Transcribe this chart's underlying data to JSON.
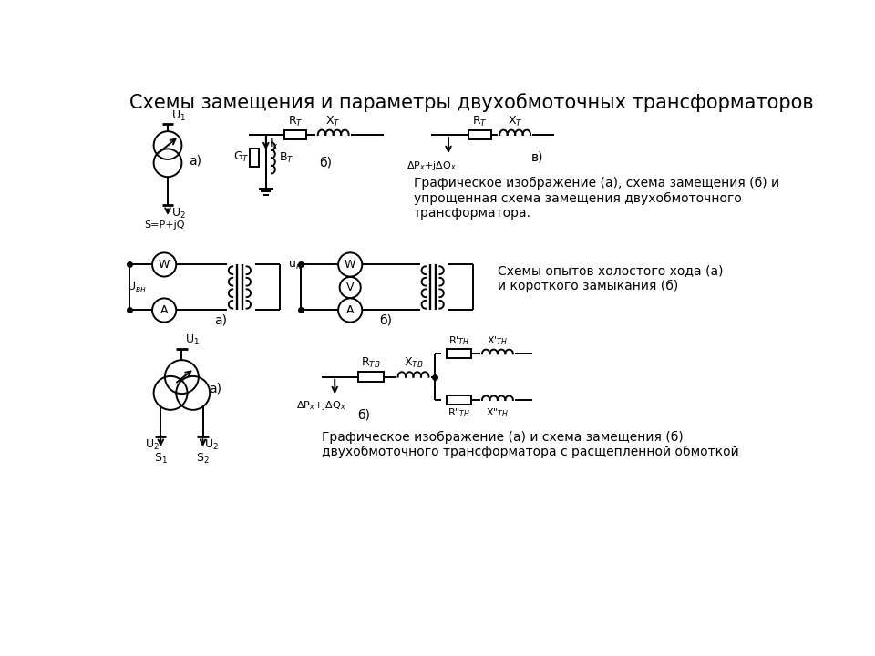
{
  "title": "Схемы замещения и параметры двухобмоточных трансформаторов",
  "title_fontsize": 15,
  "background_color": "#ffffff",
  "text_color": "#000000",
  "section1_text": "Графическое изображение (а), схема замещения (б) и\nупрощенная схема замещения двухобмоточного\nтрансформатора.",
  "section2_text": "Схемы опытов холостого хода (а)\nи короткого замыкания (б)",
  "section3_text": "Графическое изображение (а) и схема замещения (б)\nдвухобмоточного трансформатора с расщепленной обмоткой"
}
